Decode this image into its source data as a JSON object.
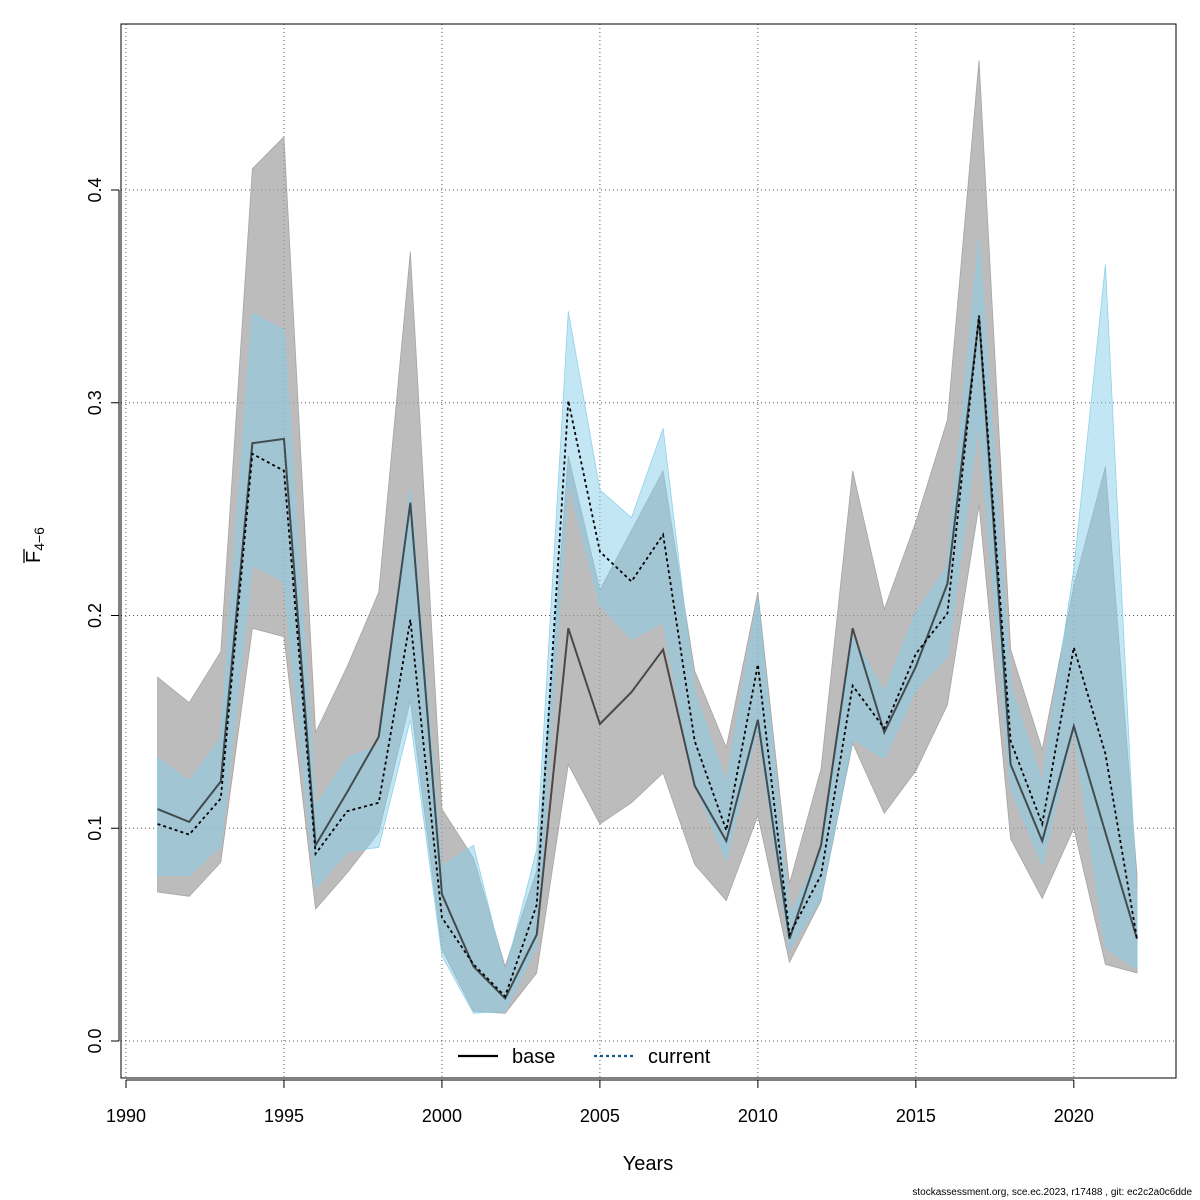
{
  "chart_data": {
    "type": "line",
    "title": "",
    "xlabel": "Years",
    "ylabel": "F",
    "ylabel_sub": "4−6",
    "xlim": [
      1990,
      2023
    ],
    "ylim": [
      0.0,
      0.47
    ],
    "x_ticks": [
      1990,
      1995,
      2000,
      2005,
      2010,
      2015,
      2020
    ],
    "y_ticks": [
      0.0,
      0.1,
      0.2,
      0.3,
      0.4
    ],
    "y_tick_labels": [
      "0.0",
      "0.1",
      "0.2",
      "0.3",
      "0.4"
    ],
    "grid": true,
    "legend": "bottom-center",
    "x": [
      1991,
      1992,
      1993,
      1994,
      1995,
      1996,
      1997,
      1998,
      1999,
      2000,
      2001,
      2002,
      2003,
      2004,
      2005,
      2006,
      2007,
      2008,
      2009,
      2010,
      2011,
      2012,
      2013,
      2014,
      2015,
      2016,
      2017,
      2018,
      2019,
      2020,
      2021,
      2022
    ],
    "series": [
      {
        "name": "base",
        "color": "#000000",
        "band_color": "#a0a0a0",
        "line_style": "solid",
        "values": [
          0.109,
          0.103,
          0.122,
          0.281,
          0.283,
          0.092,
          0.117,
          0.143,
          0.253,
          0.069,
          0.035,
          0.02,
          0.05,
          0.194,
          0.149,
          0.164,
          0.184,
          0.12,
          0.094,
          0.151,
          0.048,
          0.092,
          0.194,
          0.145,
          0.176,
          0.215,
          0.34,
          0.13,
          0.094,
          0.148,
          0.098,
          0.048
        ],
        "lower": [
          0.07,
          0.068,
          0.084,
          0.194,
          0.19,
          0.062,
          0.079,
          0.098,
          0.16,
          0.043,
          0.014,
          0.013,
          0.032,
          0.13,
          0.102,
          0.112,
          0.126,
          0.083,
          0.066,
          0.106,
          0.037,
          0.066,
          0.14,
          0.107,
          0.127,
          0.158,
          0.252,
          0.095,
          0.067,
          0.1,
          0.036,
          0.032
        ],
        "upper": [
          0.171,
          0.159,
          0.183,
          0.41,
          0.425,
          0.145,
          0.176,
          0.211,
          0.371,
          0.109,
          0.086,
          0.035,
          0.08,
          0.275,
          0.212,
          0.24,
          0.268,
          0.174,
          0.138,
          0.211,
          0.074,
          0.128,
          0.268,
          0.203,
          0.244,
          0.292,
          0.461,
          0.184,
          0.137,
          0.214,
          0.27,
          0.078
        ]
      },
      {
        "name": "current",
        "color": "#0f5a8a",
        "band_color": "#87ceeb",
        "line_style": "dotted",
        "values": [
          0.102,
          0.097,
          0.114,
          0.276,
          0.268,
          0.088,
          0.108,
          0.112,
          0.198,
          0.058,
          0.036,
          0.021,
          0.064,
          0.301,
          0.23,
          0.216,
          0.238,
          0.141,
          0.099,
          0.177,
          0.05,
          0.078,
          0.167,
          0.147,
          0.182,
          0.201,
          0.341,
          0.141,
          0.102,
          0.185,
          0.135,
          0.048
        ],
        "lower": [
          0.078,
          0.078,
          0.092,
          0.224,
          0.216,
          0.072,
          0.089,
          0.091,
          0.151,
          0.04,
          0.013,
          0.014,
          0.045,
          0.263,
          0.205,
          0.189,
          0.197,
          0.121,
          0.085,
          0.148,
          0.043,
          0.067,
          0.142,
          0.133,
          0.165,
          0.181,
          0.292,
          0.119,
          0.083,
          0.147,
          0.044,
          0.034
        ],
        "upper": [
          0.133,
          0.122,
          0.142,
          0.342,
          0.334,
          0.11,
          0.133,
          0.139,
          0.259,
          0.082,
          0.092,
          0.032,
          0.09,
          0.343,
          0.259,
          0.246,
          0.288,
          0.164,
          0.121,
          0.208,
          0.059,
          0.089,
          0.19,
          0.164,
          0.201,
          0.223,
          0.377,
          0.167,
          0.121,
          0.222,
          0.365,
          0.065
        ]
      }
    ]
  },
  "footnote": "stockassessment.org, sce.ec.2023, r17488 , git: ec2c2a0c6dde"
}
